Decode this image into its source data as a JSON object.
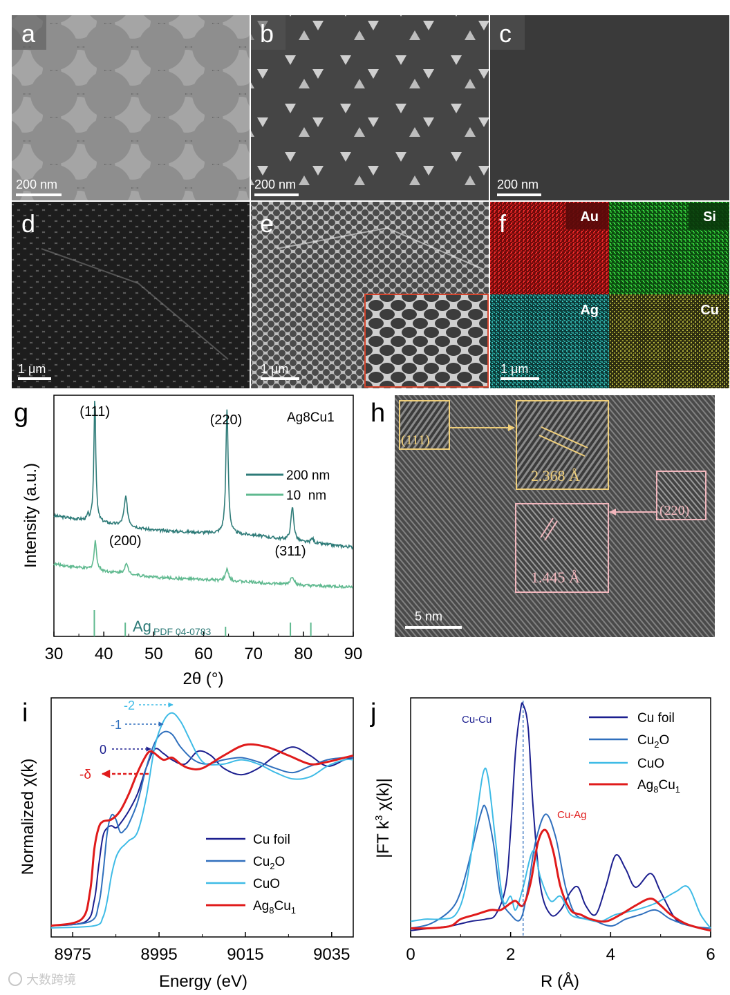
{
  "panel_labels": {
    "a": "a",
    "b": "b",
    "c": "c",
    "d": "d",
    "e": "e",
    "f": "f",
    "g": "g",
    "h": "h",
    "i": "i",
    "j": "j"
  },
  "scale_bars": {
    "a": "200 nm",
    "b": "200 nm",
    "c": "200 nm",
    "d": "1 μm",
    "e": "1 μm",
    "f": "1 μm",
    "h": "5 nm"
  },
  "eds_elements": [
    "Au",
    "Si",
    "Ag",
    "Cu"
  ],
  "colors": {
    "xrd_200nm": "#2e7b78",
    "xrd_10nm": "#5fb98f",
    "ref_lines": "#5fb98f",
    "cu_foil": "#1c1f8f",
    "cu2o": "#2f6fbd",
    "cuo": "#3ebbe6",
    "ag8cu1": "#e01b1b",
    "hrtem_111": "#f0cf7a",
    "hrtem_220": "#f2b7bd",
    "eds_au": "#c81a1a",
    "eds_si": "#1f9a25",
    "eds_ag": "#2aa7a0",
    "eds_cu": "#9a9a30"
  },
  "hrtem": {
    "plane_111": "(111)",
    "d_111": "2.368 Å",
    "plane_220": "(220)",
    "d_220": "1.445 Å"
  },
  "chart_data": [
    {
      "id": "g",
      "type": "line",
      "title": "Ag8Cu1",
      "xlabel": "2θ (°)",
      "ylabel": "Intensity (a.u.)",
      "xlim": [
        30,
        90
      ],
      "xticks": [
        30,
        40,
        50,
        60,
        70,
        80,
        90
      ],
      "legend": [
        "200 nm",
        "10  nm"
      ],
      "peak_labels": [
        {
          "text": "(111)",
          "x": 38.2
        },
        {
          "text": "(200)",
          "x": 44.3
        },
        {
          "text": "(220)",
          "x": 64.5
        },
        {
          "text": "(311)",
          "x": 77.4
        }
      ],
      "reference": {
        "label": "Ag",
        "sublabel": "PDF 04-0783",
        "lines": [
          38.1,
          44.3,
          64.4,
          77.4,
          81.5
        ]
      },
      "series": [
        {
          "name": "200 nm",
          "baseline": [
            [
              30,
              0.5
            ],
            [
              40,
              0.47
            ],
            [
              50,
              0.44
            ],
            [
              60,
              0.43
            ],
            [
              70,
              0.42
            ],
            [
              80,
              0.39
            ],
            [
              90,
              0.37
            ]
          ],
          "peaks": [
            {
              "x": 38.2,
              "h": 0.52,
              "w": 0.45
            },
            {
              "x": 36.8,
              "h": 0.02,
              "w": 0.35
            },
            {
              "x": 44.4,
              "h": 0.12,
              "w": 0.8
            },
            {
              "x": 64.7,
              "h": 0.52,
              "w": 0.55
            },
            {
              "x": 77.8,
              "h": 0.14,
              "w": 0.7
            },
            {
              "x": 81.8,
              "h": 0.02,
              "w": 0.7
            }
          ]
        },
        {
          "name": "10  nm",
          "baseline": [
            [
              30,
              0.3
            ],
            [
              40,
              0.27
            ],
            [
              50,
              0.245
            ],
            [
              60,
              0.235
            ],
            [
              70,
              0.225
            ],
            [
              80,
              0.21
            ],
            [
              90,
              0.205
            ]
          ],
          "peaks": [
            {
              "x": 38.3,
              "h": 0.12,
              "w": 0.6
            },
            {
              "x": 44.5,
              "h": 0.04,
              "w": 0.9
            },
            {
              "x": 64.7,
              "h": 0.05,
              "w": 0.7
            },
            {
              "x": 77.8,
              "h": 0.035,
              "w": 0.9
            }
          ]
        }
      ]
    },
    {
      "id": "i",
      "type": "line",
      "xlabel": "Energy (eV)",
      "ylabel": "Normalized χ(k)",
      "xlim": [
        8970,
        9040
      ],
      "xticks": [
        8975,
        8995,
        9015,
        9035
      ],
      "legend": [
        "Cu foil",
        "Cu2O",
        "CuO",
        "Ag8Cu1"
      ],
      "edge_shift_labels": [
        {
          "text": "-2",
          "series": "CuO"
        },
        {
          "text": "-1",
          "series": "Cu2O"
        },
        {
          "text": "0",
          "series": "Cu foil"
        },
        {
          "text": "-δ",
          "series": "Ag8Cu1"
        }
      ],
      "series": [
        {
          "name": "Cu foil",
          "x": [
            8970,
            8978,
            8980,
            8981,
            8982,
            8983,
            8984,
            8985,
            8986,
            8988,
            8990,
            8992,
            8994,
            8996,
            8998,
            9001,
            9004,
            9007,
            9010,
            9014,
            9018,
            9022,
            9026,
            9030,
            9034,
            9038,
            9040
          ],
          "y": [
            0.02,
            0.04,
            0.14,
            0.3,
            0.44,
            0.48,
            0.49,
            0.48,
            0.5,
            0.56,
            0.64,
            0.76,
            0.85,
            0.83,
            0.8,
            0.78,
            0.84,
            0.82,
            0.76,
            0.73,
            0.76,
            0.82,
            0.86,
            0.82,
            0.77,
            0.8,
            0.81
          ]
        },
        {
          "name": "Cu2O",
          "x": [
            8970,
            8979,
            8981,
            8982,
            8983,
            8984,
            8985,
            8986,
            8987,
            8988,
            8990,
            8992,
            8994,
            8996,
            8998,
            9000,
            9003,
            9006,
            9010,
            9014,
            9018,
            9022,
            9026,
            9030,
            9034,
            9038,
            9040
          ],
          "y": [
            0.02,
            0.04,
            0.12,
            0.26,
            0.46,
            0.54,
            0.52,
            0.46,
            0.47,
            0.5,
            0.6,
            0.76,
            0.88,
            0.93,
            0.92,
            0.86,
            0.8,
            0.78,
            0.8,
            0.81,
            0.79,
            0.76,
            0.74,
            0.77,
            0.8,
            0.81,
            0.81
          ]
        },
        {
          "name": "CuO",
          "x": [
            8970,
            8980,
            8982,
            8983,
            8984,
            8985,
            8986,
            8987,
            8988,
            8990,
            8992,
            8994,
            8996,
            8998,
            9000,
            9002,
            9004,
            9006,
            9010,
            9014,
            9018,
            9022,
            9026,
            9030,
            9034,
            9038,
            9040
          ],
          "y": [
            0.01,
            0.02,
            0.06,
            0.14,
            0.26,
            0.34,
            0.38,
            0.4,
            0.42,
            0.46,
            0.62,
            0.86,
            0.98,
            1.02,
            0.98,
            0.9,
            0.82,
            0.78,
            0.78,
            0.8,
            0.78,
            0.74,
            0.71,
            0.72,
            0.77,
            0.8,
            0.8
          ]
        },
        {
          "name": "Ag8Cu1",
          "x": [
            8970,
            8977,
            8979,
            8980,
            8981,
            8982,
            8984,
            8986,
            8988,
            8990,
            8992,
            8993,
            8994,
            8996,
            8998,
            9000,
            9002,
            9005,
            9010,
            9015,
            9020,
            9025,
            9030,
            9034,
            9038,
            9040
          ],
          "y": [
            0.02,
            0.05,
            0.18,
            0.38,
            0.48,
            0.51,
            0.52,
            0.56,
            0.64,
            0.74,
            0.82,
            0.84,
            0.83,
            0.8,
            0.81,
            0.78,
            0.76,
            0.76,
            0.82,
            0.87,
            0.86,
            0.82,
            0.78,
            0.79,
            0.81,
            0.82
          ]
        }
      ]
    },
    {
      "id": "j",
      "type": "line",
      "xlabel": "R (Å)",
      "ylabel": "|FT k3 χ(k)|",
      "xlim": [
        0,
        6
      ],
      "xticks": [
        0,
        2,
        4,
        6
      ],
      "legend": [
        "Cu foil",
        "Cu2O",
        "CuO",
        "Ag8Cu1"
      ],
      "annotations": [
        {
          "text": "Cu-Cu",
          "x": 2.22
        },
        {
          "text": "Cu-Ag",
          "x": 2.75
        }
      ],
      "reference_line_x": 2.25,
      "series": [
        {
          "name": "Cu foil",
          "x": [
            0,
            0.4,
            0.8,
            1.2,
            1.5,
            1.7,
            1.9,
            2.0,
            2.1,
            2.2,
            2.25,
            2.35,
            2.45,
            2.6,
            2.8,
            3.0,
            3.2,
            3.35,
            3.5,
            3.7,
            3.9,
            4.1,
            4.3,
            4.5,
            4.8,
            5.0,
            5.3,
            5.6,
            6.0
          ],
          "y": [
            0.01,
            0.02,
            0.03,
            0.05,
            0.06,
            0.08,
            0.2,
            0.45,
            0.8,
            0.98,
            1.0,
            0.9,
            0.55,
            0.2,
            0.08,
            0.1,
            0.18,
            0.2,
            0.12,
            0.08,
            0.2,
            0.34,
            0.28,
            0.2,
            0.26,
            0.18,
            0.06,
            0.03,
            0.01
          ]
        },
        {
          "name": "Cu2O",
          "x": [
            0,
            0.4,
            0.8,
            1.0,
            1.2,
            1.4,
            1.5,
            1.65,
            1.8,
            2.0,
            2.2,
            2.35,
            2.5,
            2.7,
            2.9,
            3.1,
            3.3,
            3.6,
            4.0,
            4.3,
            4.6,
            4.9,
            5.2,
            5.6,
            6.0
          ],
          "y": [
            0.02,
            0.04,
            0.1,
            0.18,
            0.34,
            0.52,
            0.55,
            0.4,
            0.16,
            0.08,
            0.06,
            0.2,
            0.4,
            0.52,
            0.42,
            0.2,
            0.08,
            0.06,
            0.03,
            0.06,
            0.08,
            0.1,
            0.06,
            0.03,
            0.02
          ]
        },
        {
          "name": "CuO",
          "x": [
            0,
            0.3,
            0.6,
            0.9,
            1.1,
            1.3,
            1.45,
            1.55,
            1.7,
            1.85,
            2.0,
            2.1,
            2.25,
            2.45,
            2.6,
            2.8,
            3.0,
            3.2,
            3.5,
            3.8,
            4.1,
            4.5,
            4.9,
            5.3,
            5.55,
            5.8,
            6.0
          ],
          "y": [
            0.05,
            0.06,
            0.06,
            0.08,
            0.2,
            0.48,
            0.7,
            0.68,
            0.4,
            0.14,
            0.16,
            0.1,
            0.2,
            0.36,
            0.24,
            0.14,
            0.16,
            0.08,
            0.06,
            0.05,
            0.08,
            0.1,
            0.13,
            0.18,
            0.2,
            0.08,
            0.02
          ]
        },
        {
          "name": "Ag8Cu1",
          "x": [
            0,
            0.4,
            0.8,
            1.0,
            1.3,
            1.6,
            1.8,
            2.0,
            2.1,
            2.25,
            2.4,
            2.55,
            2.7,
            2.85,
            3.0,
            3.2,
            3.4,
            3.6,
            3.9,
            4.2,
            4.5,
            4.8,
            5.0,
            5.2,
            5.5,
            5.8,
            6.0
          ],
          "y": [
            0.02,
            0.02,
            0.03,
            0.06,
            0.08,
            0.1,
            0.1,
            0.13,
            0.14,
            0.12,
            0.22,
            0.4,
            0.45,
            0.36,
            0.2,
            0.1,
            0.08,
            0.06,
            0.05,
            0.08,
            0.12,
            0.15,
            0.12,
            0.08,
            0.04,
            0.02,
            0.01
          ]
        }
      ]
    }
  ],
  "watermark": "大数跨境"
}
